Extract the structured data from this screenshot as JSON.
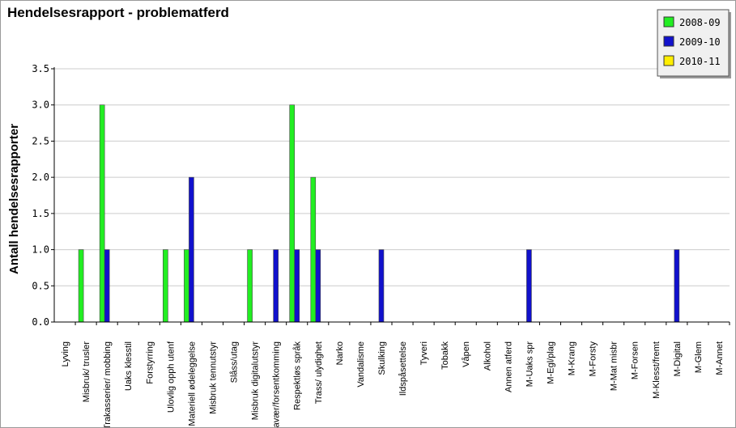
{
  "chart_data": {
    "type": "bar",
    "title": "Hendelsesrapport - problematferd",
    "xlabel": "",
    "ylabel": "Antall hendelsesrapporter",
    "ylim": [
      0,
      3.5
    ],
    "yticks": [
      "0.0",
      "0.5",
      "1.0",
      "1.5",
      "2.0",
      "2.5",
      "3.0",
      "3.5"
    ],
    "grid": true,
    "legend_position": "top-right",
    "categories": [
      "Lyving",
      "Misbruk/ trusler",
      "Trakasserier/ mobbing",
      "Uaks klesstil",
      "Forstyrring",
      "Ulovlig opph utenf",
      "Materiell ødeleggelse",
      "Misbruk tennutstyr",
      "Slåss/utag",
      "Misbruk digitalutstyr",
      "Fravær/forsentkomming",
      "Respektløs språk",
      "Trass/ ulydighet",
      "Narko",
      "Vandalisme",
      "Skulking",
      "Ildspåsettelse",
      "Tyveri",
      "Tobakk",
      "Våpen",
      "Alkohol",
      "Annen atferd",
      "M-Uaks spr",
      "M-Egl/plag",
      "M-Krang",
      "M-Forsty",
      "M-Mat misbr",
      "M-Forsen",
      "M-Klesst/fremt",
      "M-Digital",
      "M-Glem",
      "M-Annet"
    ],
    "series": [
      {
        "name": "2008-09",
        "color": "#22ee22",
        "values": [
          0,
          1,
          3,
          0,
          0,
          1,
          1,
          0,
          0,
          1,
          0,
          3,
          2,
          0,
          0,
          0,
          0,
          0,
          0,
          0,
          0,
          0,
          0,
          0,
          0,
          0,
          0,
          0,
          0,
          0,
          0,
          0
        ]
      },
      {
        "name": "2009-10",
        "color": "#1111cc",
        "values": [
          0,
          0,
          1,
          0,
          0,
          0,
          2,
          0,
          0,
          0,
          1,
          1,
          1,
          0,
          0,
          1,
          0,
          0,
          0,
          0,
          0,
          0,
          1,
          0,
          0,
          0,
          0,
          0,
          0,
          1,
          0,
          0
        ]
      },
      {
        "name": "2010-11",
        "color": "#ffee00",
        "values": [
          0,
          0,
          0,
          0,
          0,
          0,
          0,
          0,
          0,
          0,
          0,
          0,
          0,
          0,
          0,
          0,
          0,
          0,
          0,
          0,
          0,
          0,
          0,
          0,
          0,
          0,
          0,
          0,
          0,
          0,
          0,
          0
        ]
      }
    ]
  }
}
